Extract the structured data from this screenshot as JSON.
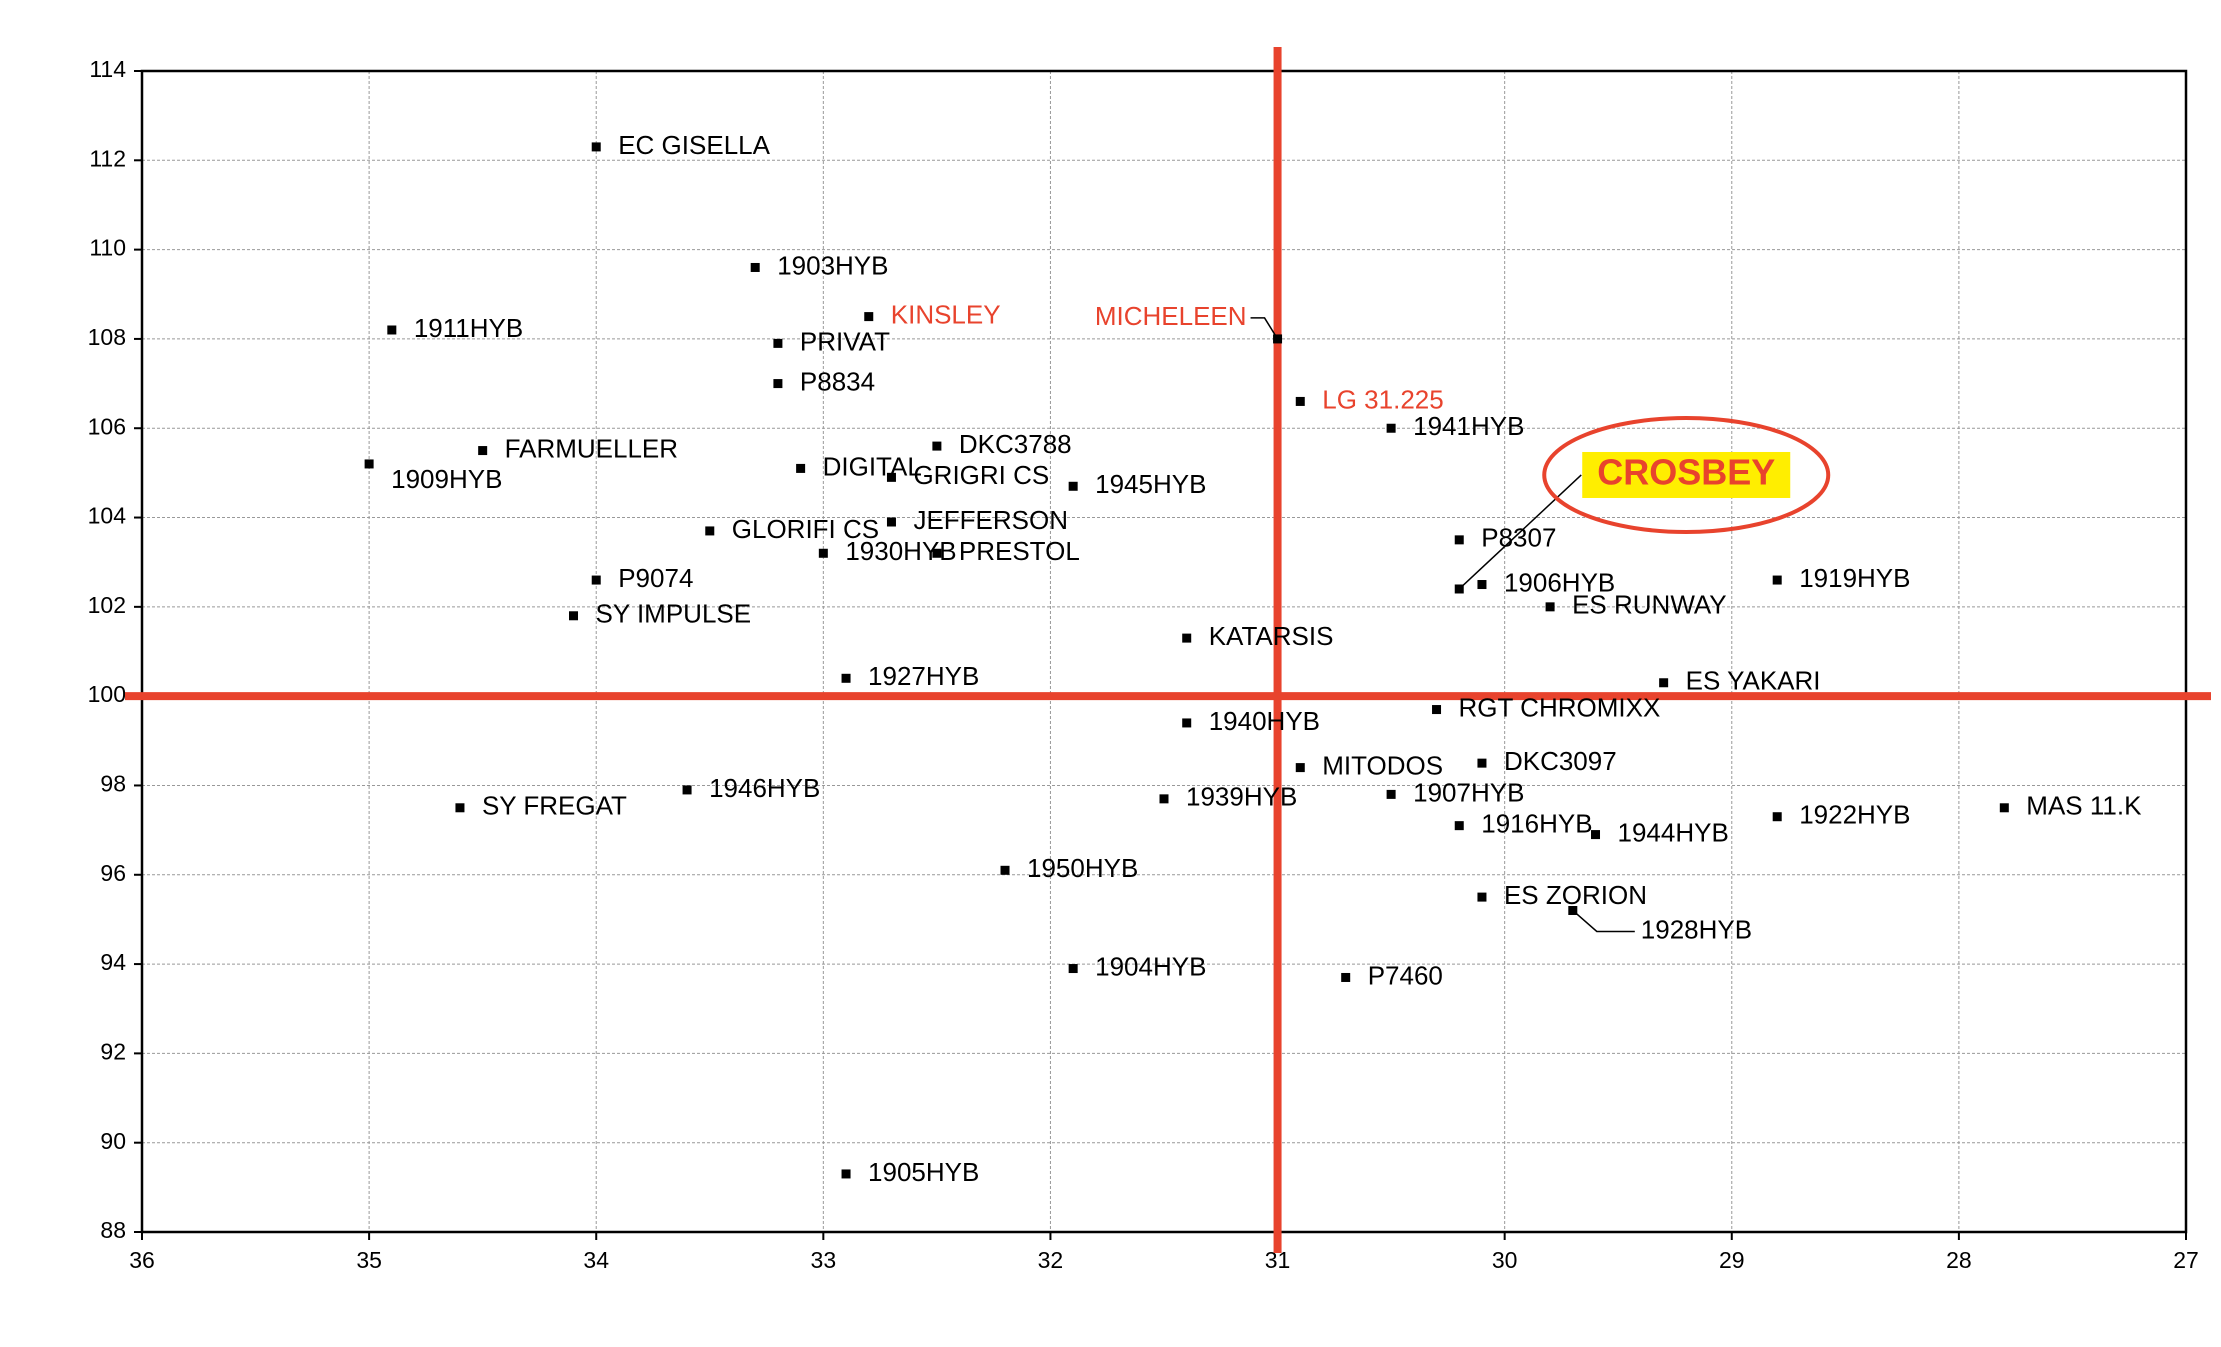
{
  "chart_data": {
    "type": "scatter",
    "xlim": [
      36,
      27
    ],
    "xticks": [
      36,
      35,
      34,
      33,
      32,
      31,
      30,
      29,
      28,
      27
    ],
    "ylim": [
      88,
      114
    ],
    "yticks": [
      88,
      90,
      92,
      94,
      96,
      98,
      100,
      102,
      104,
      106,
      108,
      110,
      112,
      114
    ],
    "grid": true,
    "reference_x": 31,
    "reference_y": 100,
    "reference_color": "#e8432d",
    "series": [
      {
        "color": "#000000",
        "labels": [
          "EC GISELLA",
          "1903HYB",
          "1911HYB",
          "PRIVAT",
          "P8834",
          "1941HYB",
          "FARMUELLER",
          "1909HYB",
          "DIGITAL",
          "DKC3788",
          "GRIGRI CS",
          "1945HYB",
          "P8307",
          "1906HYB",
          "ES RUNWAY",
          "1919HYB",
          "GLORIFI CS",
          "JEFFERSON",
          "1930HYB",
          "PRESTOL",
          "P9074",
          "SY IMPULSE",
          "KATARSIS",
          "1927HYB",
          "ES YAKARI",
          "RGT CHROMIXX",
          "1940HYB",
          "MITODOS",
          "DKC3097",
          "1946HYB",
          "SY FREGAT",
          "1939HYB",
          "1907HYB",
          "1916HYB",
          "1944HYB",
          "1922HYB",
          "MAS 11.K",
          "1950HYB",
          "ES ZORION",
          "1928HYB",
          "1904HYB",
          "P7460",
          "1905HYB"
        ],
        "x": [
          34.0,
          33.3,
          34.9,
          33.2,
          33.2,
          30.5,
          34.5,
          35.0,
          33.1,
          32.5,
          32.7,
          31.9,
          30.2,
          30.1,
          29.8,
          28.8,
          33.5,
          32.7,
          33.0,
          32.5,
          34.0,
          34.1,
          31.4,
          32.9,
          29.3,
          30.3,
          31.4,
          30.9,
          30.1,
          33.6,
          34.6,
          31.5,
          30.5,
          30.2,
          29.6,
          28.8,
          27.8,
          32.2,
          30.1,
          29.7,
          31.9,
          30.7,
          32.9
        ],
        "values": [
          112.3,
          109.6,
          108.2,
          107.9,
          107.0,
          106.0,
          105.5,
          105.2,
          105.1,
          105.6,
          104.9,
          104.7,
          103.5,
          102.5,
          102.0,
          102.6,
          103.7,
          103.9,
          103.2,
          103.2,
          102.6,
          101.8,
          101.3,
          100.4,
          100.3,
          99.7,
          99.4,
          98.4,
          98.5,
          97.9,
          97.5,
          97.7,
          97.8,
          97.1,
          96.9,
          97.3,
          97.5,
          96.1,
          95.5,
          95.2,
          93.9,
          93.7,
          89.3
        ]
      },
      {
        "color": "#e8432d",
        "labels": [
          "KINSLEY",
          "MICHELEEN",
          "LG 31.225"
        ],
        "x": [
          32.8,
          31.0,
          30.9
        ],
        "values": [
          108.5,
          108.0,
          106.6
        ]
      },
      {
        "color": "#e8432d",
        "highlight": true,
        "highlight_fill": "#ffee00",
        "labels": [
          "CROSBEY"
        ],
        "x": [
          30.2
        ],
        "values": [
          102.4
        ]
      }
    ]
  }
}
